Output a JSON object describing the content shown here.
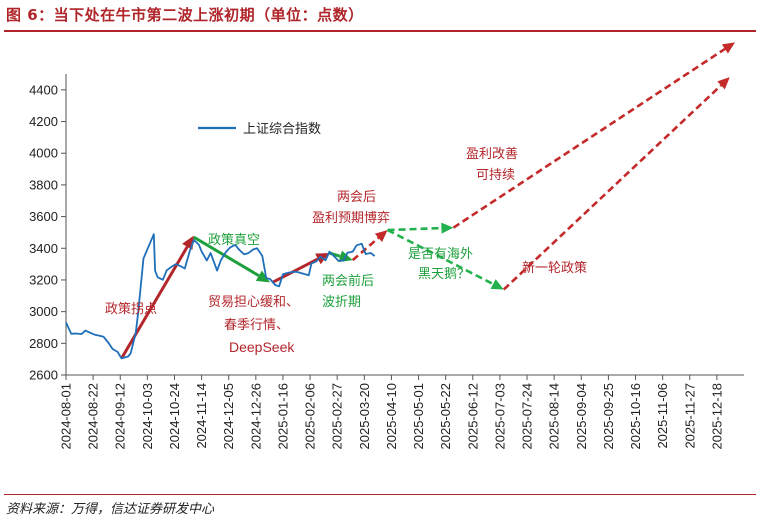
{
  "header": {
    "title": "图 6：当下处在牛市第二波上涨初期（单位：点数）",
    "source": "资料来源：万得，信达证券研发中心"
  },
  "colors": {
    "title": "#b0252a",
    "index_line": "#1f6fb9",
    "rise_arrow": "#b3262b",
    "fall_arrow": "#1ea03c",
    "forecast_red": "#c42a2a",
    "forecast_green": "#22b14c"
  },
  "chart_data": {
    "type": "line",
    "title": "",
    "xlabel": "",
    "ylabel": "",
    "ylim": [
      2600,
      4500
    ],
    "yticks": [
      2600,
      2800,
      3000,
      3200,
      3400,
      3600,
      3800,
      4000,
      4200,
      4400
    ],
    "xticks": [
      "2024-08-01",
      "2024-08-22",
      "2024-09-12",
      "2024-10-03",
      "2024-10-24",
      "2024-11-14",
      "2024-12-05",
      "2024-12-26",
      "2025-01-16",
      "2025-02-06",
      "2025-02-27",
      "2025-03-20",
      "2025-04-10",
      "2025-05-01",
      "2025-05-22",
      "2025-06-12",
      "2025-07-03",
      "2025-07-24",
      "2025-08-14",
      "2025-09-04",
      "2025-09-25",
      "2025-10-16",
      "2025-11-06",
      "2025-11-27",
      "2025-12-18"
    ],
    "xlim": [
      "2024-08-01",
      "2026-01-08"
    ],
    "grid": false,
    "legend": {
      "position": "upper-left",
      "entries": [
        "上证综合指数"
      ]
    },
    "series": [
      {
        "name": "上证综合指数",
        "points": [
          [
            "2024-08-01",
            2932
          ],
          [
            "2024-08-05",
            2860
          ],
          [
            "2024-08-09",
            2862
          ],
          [
            "2024-08-13",
            2858
          ],
          [
            "2024-08-16",
            2880
          ],
          [
            "2024-08-20",
            2866
          ],
          [
            "2024-08-23",
            2855
          ],
          [
            "2024-08-27",
            2848
          ],
          [
            "2024-08-30",
            2842
          ],
          [
            "2024-09-03",
            2802
          ],
          [
            "2024-09-06",
            2765
          ],
          [
            "2024-09-10",
            2745
          ],
          [
            "2024-09-13",
            2705
          ],
          [
            "2024-09-18",
            2717
          ],
          [
            "2024-09-20",
            2736
          ],
          [
            "2024-09-24",
            2863
          ],
          [
            "2024-09-26",
            3000
          ],
          [
            "2024-09-27",
            3087
          ],
          [
            "2024-09-30",
            3336
          ],
          [
            "2024-10-08",
            3489
          ],
          [
            "2024-10-09",
            3258
          ],
          [
            "2024-10-11",
            3217
          ],
          [
            "2024-10-15",
            3201
          ],
          [
            "2024-10-18",
            3261
          ],
          [
            "2024-10-22",
            3285
          ],
          [
            "2024-10-25",
            3300
          ],
          [
            "2024-10-29",
            3286
          ],
          [
            "2024-11-01",
            3272
          ],
          [
            "2024-11-05",
            3387
          ],
          [
            "2024-11-08",
            3452
          ],
          [
            "2024-11-12",
            3421
          ],
          [
            "2024-11-14",
            3380
          ],
          [
            "2024-11-18",
            3323
          ],
          [
            "2024-11-21",
            3370
          ],
          [
            "2024-11-26",
            3259
          ],
          [
            "2024-11-29",
            3326
          ],
          [
            "2024-12-03",
            3378
          ],
          [
            "2024-12-06",
            3404
          ],
          [
            "2024-12-10",
            3422
          ],
          [
            "2024-12-13",
            3391
          ],
          [
            "2024-12-17",
            3362
          ],
          [
            "2024-12-20",
            3368
          ],
          [
            "2024-12-24",
            3393
          ],
          [
            "2024-12-27",
            3400
          ],
          [
            "2024-12-31",
            3352
          ],
          [
            "2025-01-03",
            3212
          ],
          [
            "2025-01-06",
            3206
          ],
          [
            "2025-01-10",
            3168
          ],
          [
            "2025-01-13",
            3160
          ],
          [
            "2025-01-16",
            3236
          ],
          [
            "2025-01-20",
            3245
          ],
          [
            "2025-01-24",
            3252
          ],
          [
            "2025-01-27",
            3250
          ],
          [
            "2025-02-05",
            3230
          ],
          [
            "2025-02-07",
            3303
          ],
          [
            "2025-02-11",
            3318
          ],
          [
            "2025-02-14",
            3346
          ],
          [
            "2025-02-18",
            3324
          ],
          [
            "2025-02-21",
            3379
          ],
          [
            "2025-02-25",
            3346
          ],
          [
            "2025-02-28",
            3320
          ],
          [
            "2025-03-04",
            3324
          ],
          [
            "2025-03-07",
            3372
          ],
          [
            "2025-03-11",
            3379
          ],
          [
            "2025-03-14",
            3419
          ],
          [
            "2025-03-18",
            3429
          ],
          [
            "2025-03-21",
            3364
          ],
          [
            "2025-03-25",
            3370
          ],
          [
            "2025-03-28",
            3351
          ]
        ]
      }
    ],
    "annotations": [
      {
        "text": "政策拐点",
        "color": "#b3262b"
      },
      {
        "text": "政策真空",
        "color": "#1ea03c"
      },
      {
        "text": "贸易担心缓和、",
        "color": "#b3262b"
      },
      {
        "text": "春季行情、",
        "color": "#b3262b"
      },
      {
        "text": "DeepSeek",
        "color": "#b3262b"
      },
      {
        "text": "两会前后",
        "color": "#1ea03c"
      },
      {
        "text": "波折期",
        "color": "#1ea03c"
      },
      {
        "text": "两会后",
        "color": "#b3262b"
      },
      {
        "text": "盈利预期博弈",
        "color": "#b3262b"
      },
      {
        "text": "是否有海外",
        "color": "#1ea03c"
      },
      {
        "text": "黑天鹅？",
        "color": "#1ea03c"
      },
      {
        "text": "盈利改善",
        "color": "#b3262b"
      },
      {
        "text": "可持续",
        "color": "#b3262b"
      },
      {
        "text": "新一轮政策",
        "color": "#b3262b"
      }
    ],
    "arrows": [
      {
        "kind": "solid",
        "color": "#b3262b",
        "from": [
          "2024-09-13",
          2705
        ],
        "to": [
          "2024-11-08",
          3480
        ]
      },
      {
        "kind": "solid",
        "color": "#1ea03c",
        "from": [
          "2024-11-08",
          3470
        ],
        "to": [
          "2025-01-06",
          3185
        ]
      },
      {
        "kind": "solid",
        "color": "#b3262b",
        "from": [
          "2025-01-08",
          3185
        ],
        "to": [
          "2025-02-21",
          3370
        ]
      },
      {
        "kind": "solid",
        "color": "#1ea03c",
        "from": [
          "2025-02-21",
          3370
        ],
        "to": [
          "2025-03-11",
          3325
        ]
      },
      {
        "kind": "dashed",
        "color": "#c42a2a",
        "from": [
          "2025-03-11",
          3325
        ],
        "to": [
          "2025-04-07",
          3515
        ]
      },
      {
        "kind": "dashed",
        "color": "#22b14c",
        "from": [
          "2025-04-07",
          3515
        ],
        "to": [
          "2025-05-28",
          3530
        ]
      },
      {
        "kind": "dashed",
        "color": "#22b14c",
        "from": [
          "2025-04-07",
          3515
        ],
        "to": [
          "2025-07-06",
          3140
        ]
      },
      {
        "kind": "dashed",
        "color": "#c42a2a",
        "from": [
          "2025-05-28",
          3530
        ],
        "to": [
          "2026-01-01",
          4700
        ]
      },
      {
        "kind": "dashed",
        "color": "#c42a2a",
        "from": [
          "2025-07-06",
          3140
        ],
        "to": [
          "2025-12-28",
          4480
        ]
      }
    ]
  }
}
